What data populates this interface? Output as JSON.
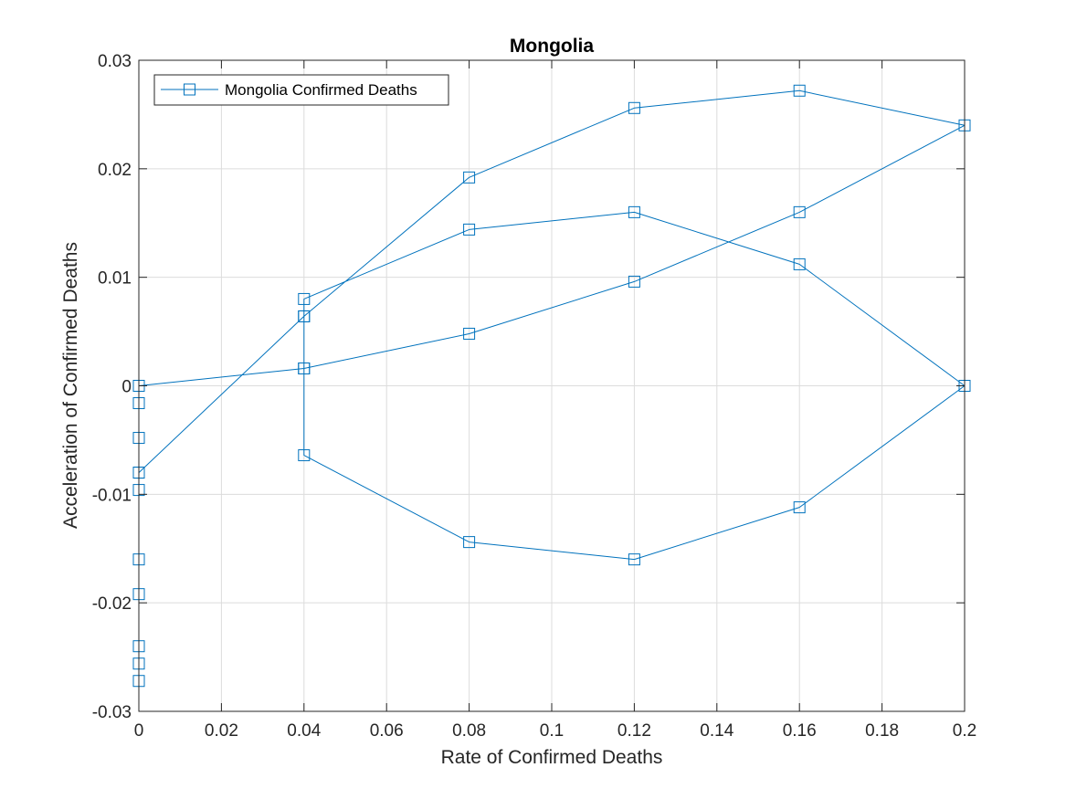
{
  "chart_data": {
    "type": "line",
    "title": "Mongolia",
    "xlabel": "Rate of Confirmed Deaths",
    "ylabel": "Acceleration of Confirmed Deaths",
    "xlim": [
      0,
      0.2
    ],
    "ylim": [
      -0.03,
      0.03
    ],
    "xticks": [
      0,
      0.02,
      0.04,
      0.06,
      0.08,
      0.1,
      0.12,
      0.14,
      0.16,
      0.18,
      0.2
    ],
    "yticks": [
      -0.03,
      -0.02,
      -0.01,
      0,
      0.01,
      0.02,
      0.03
    ],
    "xtick_labels": [
      "0",
      "0.02",
      "0.04",
      "0.06",
      "0.08",
      "0.1",
      "0.12",
      "0.14",
      "0.16",
      "0.18",
      "0.2"
    ],
    "ytick_labels": [
      "-0.03",
      "-0.02",
      "-0.01",
      "0",
      "0.01",
      "0.02",
      "0.03"
    ],
    "grid": true,
    "legend_position": "top-left",
    "series": [
      {
        "name": "Mongolia Confirmed Deaths",
        "color": "#0072BD",
        "marker": "square",
        "points": [
          [
            0,
            0
          ],
          [
            0,
            -0.0016
          ],
          [
            0,
            -0.0048
          ],
          [
            0,
            -0.008
          ],
          [
            0,
            -0.0096
          ],
          [
            0,
            -0.016
          ],
          [
            0,
            -0.0192
          ],
          [
            0,
            -0.024
          ],
          [
            0,
            -0.0256
          ],
          [
            0,
            -0.0272
          ],
          [
            0,
            -0.008
          ],
          [
            0.04,
            0.0064
          ],
          [
            0.08,
            0.0192
          ],
          [
            0.12,
            0.0256
          ],
          [
            0.16,
            0.0272
          ],
          [
            0.2,
            0.024
          ],
          [
            0.16,
            0.016
          ],
          [
            0.12,
            0.0096
          ],
          [
            0.08,
            0.0048
          ],
          [
            0.04,
            0.0016
          ],
          [
            0,
            0
          ],
          [
            0.04,
            0.0016
          ],
          [
            0.04,
            0.008
          ],
          [
            0.08,
            0.0144
          ],
          [
            0.12,
            0.016
          ],
          [
            0.16,
            0.0112
          ],
          [
            0.2,
            0
          ],
          [
            0.16,
            -0.0112
          ],
          [
            0.12,
            -0.016
          ],
          [
            0.08,
            -0.0144
          ],
          [
            0.04,
            -0.0064
          ],
          [
            0.04,
            0.0064
          ]
        ]
      }
    ]
  }
}
